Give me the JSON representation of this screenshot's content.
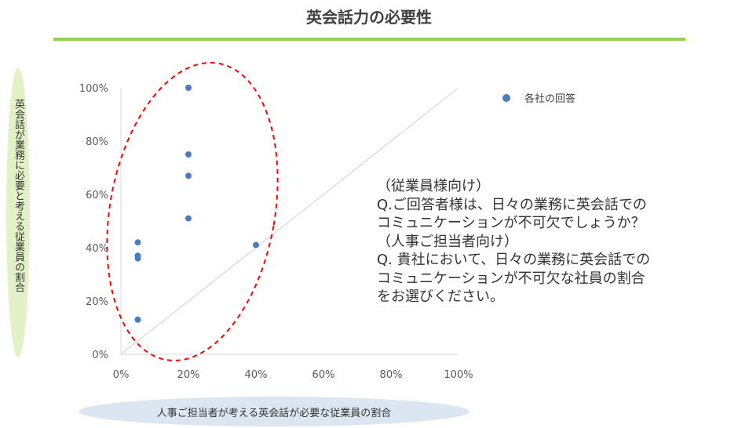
{
  "title": "英会話力の必要性",
  "question": {
    "lines": [
      "（従業員様向け）",
      "Q.ご回答者様は、日々の業務に英会話での",
      "コミュニケーションが不可欠でしょうか？",
      "（人事ご担当者向け）",
      "Q. 貴社において、日々の業務に英会話での",
      "コミュニケーションが不可欠な社員の割合",
      "をお選びください。"
    ]
  },
  "colors": {
    "point": "#4a7ebb",
    "accent_rule": "#92d050",
    "ellipse": "#ff0000",
    "ylabel_bg": "#e3f2c6",
    "xlabel_bg": "#dce6f2"
  },
  "chart_data": {
    "type": "scatter",
    "title": "英会話力の必要性",
    "xlabel": "人事ご担当者が考える英会話が必要な従業員の割合",
    "ylabel": "英会話が業務に必要と考える従業員の割合",
    "xlim": [
      0,
      100
    ],
    "ylim": [
      0,
      100
    ],
    "x_ticks": [
      "0%",
      "20%",
      "40%",
      "60%",
      "80%",
      "100%"
    ],
    "y_ticks": [
      "0%",
      "20%",
      "40%",
      "60%",
      "80%",
      "100%"
    ],
    "grid": false,
    "legend_position": "top-right",
    "series": [
      {
        "name": "各社の回答",
        "points": [
          {
            "x": 20,
            "y": 100
          },
          {
            "x": 20,
            "y": 75
          },
          {
            "x": 20,
            "y": 67
          },
          {
            "x": 20,
            "y": 51
          },
          {
            "x": 5,
            "y": 42
          },
          {
            "x": 5,
            "y": 37
          },
          {
            "x": 5,
            "y": 36
          },
          {
            "x": 40,
            "y": 41
          },
          {
            "x": 5,
            "y": 13
          }
        ]
      }
    ],
    "reference_line": "y = x",
    "annotation": "dashed red ellipse around points with x ≤ 20%"
  }
}
